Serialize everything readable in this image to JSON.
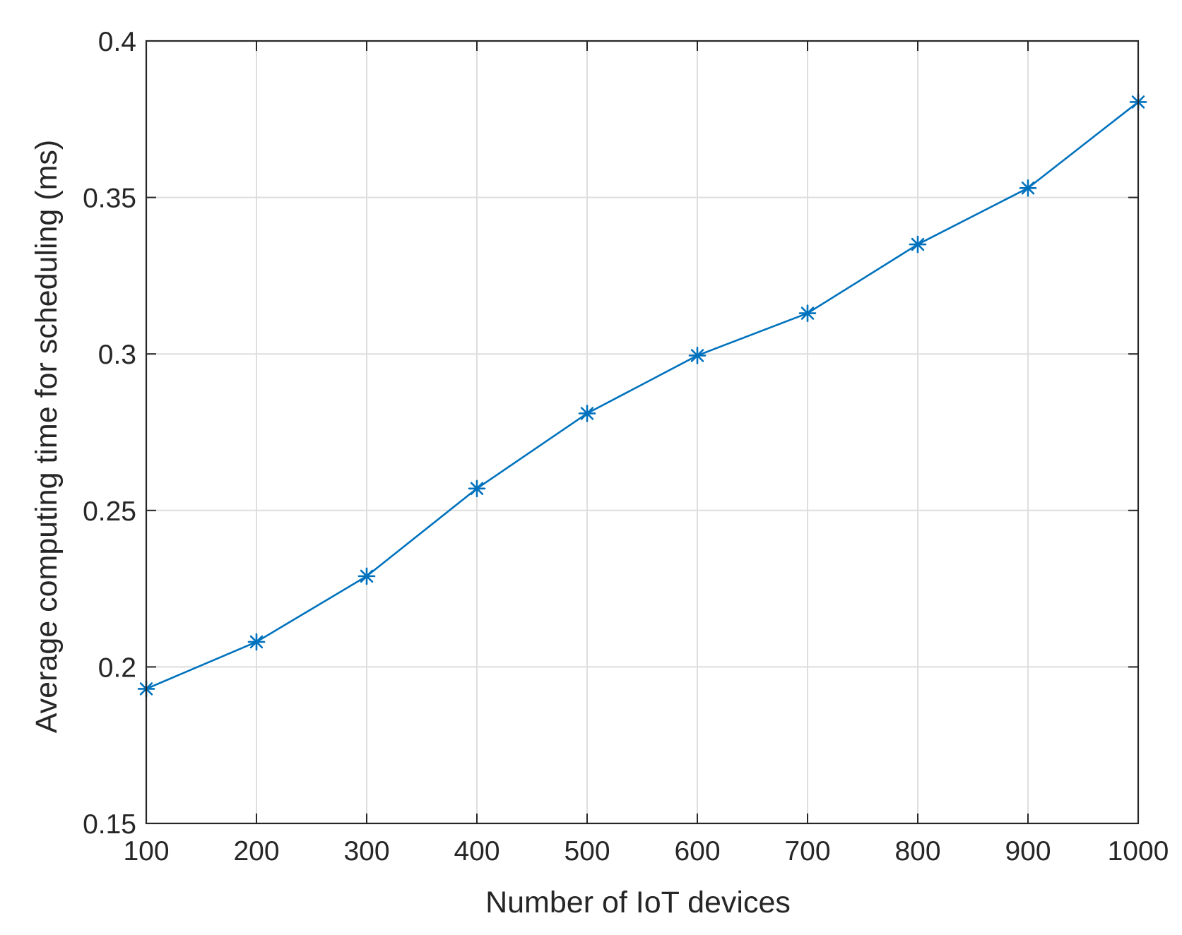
{
  "chart_data": {
    "type": "line",
    "title": "",
    "xlabel": "Number of IoT devices",
    "ylabel": "Average computing time for scheduling (ms)",
    "xlim": [
      100,
      1000
    ],
    "ylim": [
      0.15,
      0.4
    ],
    "xticks": [
      100,
      200,
      300,
      400,
      500,
      600,
      700,
      800,
      900,
      1000
    ],
    "xtick_labels": [
      "100",
      "200",
      "300",
      "400",
      "500",
      "600",
      "700",
      "800",
      "900",
      "1000"
    ],
    "yticks": [
      0.15,
      0.2,
      0.25,
      0.3,
      0.35,
      0.4
    ],
    "ytick_labels": [
      "0.15",
      "0.2",
      "0.25",
      "0.3",
      "0.35",
      "0.4"
    ],
    "grid": true,
    "legend": "none",
    "series": [
      {
        "marker": "asterisk",
        "color": "#0072BD",
        "x": [
          100,
          200,
          300,
          400,
          500,
          600,
          700,
          800,
          900,
          1000
        ],
        "y": [
          0.193,
          0.208,
          0.229,
          0.257,
          0.281,
          0.2995,
          0.313,
          0.335,
          0.353,
          0.3805
        ]
      }
    ]
  }
}
